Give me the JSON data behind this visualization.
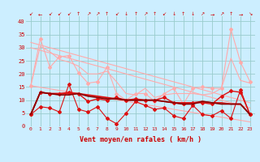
{
  "x": [
    0,
    1,
    2,
    3,
    4,
    5,
    6,
    7,
    8,
    9,
    10,
    11,
    12,
    13,
    14,
    15,
    16,
    17,
    18,
    19,
    20,
    21,
    22,
    23
  ],
  "background_color": "#cceeff",
  "grid_color": "#99cccc",
  "xlabel": "Vent moyen/en rafales ( km/h )",
  "ylim": [
    0,
    42
  ],
  "xlim": [
    -0.5,
    23.5
  ],
  "yticks": [
    0,
    5,
    10,
    15,
    20,
    25,
    30,
    35,
    40
  ],
  "line_diag1_color": "#ffaaaa",
  "line_diag1_data": [
    15.5,
    14.9,
    14.3,
    13.7,
    13.1,
    12.5,
    11.9,
    11.3,
    10.7,
    10.1,
    9.5,
    8.9,
    8.3,
    7.7,
    7.1,
    6.5,
    5.9,
    5.3,
    4.7,
    4.1,
    3.5,
    2.9,
    2.3,
    1.7
  ],
  "line_diag2_color": "#ffaaaa",
  "line_diag2_data": [
    30.0,
    29.0,
    28.0,
    27.0,
    26.0,
    25.0,
    24.0,
    23.0,
    22.0,
    21.0,
    20.0,
    19.0,
    18.0,
    17.0,
    16.0,
    15.0,
    14.0,
    13.0,
    12.0,
    11.0,
    10.0,
    9.0,
    8.0,
    7.0
  ],
  "line_diag3_color": "#ffaaaa",
  "line_diag3_data": [
    32.0,
    31.0,
    30.0,
    29.0,
    28.0,
    27.0,
    26.0,
    25.0,
    24.0,
    23.0,
    22.0,
    21.0,
    20.0,
    19.0,
    18.0,
    17.0,
    16.0,
    15.0,
    14.0,
    13.0,
    12.0,
    11.0,
    10.0,
    9.0
  ],
  "line_peak_color": "#ffaaaa",
  "line_peak_data": [
    15.5,
    33.5,
    22.5,
    26.5,
    27.0,
    20.5,
    16.5,
    17.0,
    22.5,
    12.5,
    10.0,
    12.5,
    12.5,
    9.5,
    12.5,
    14.5,
    8.5,
    14.5,
    15.0,
    14.5,
    14.5,
    37.0,
    24.5,
    17.0
  ],
  "line_avg2_color": "#ffaaaa",
  "line_avg2_data": [
    15.5,
    30.5,
    28.5,
    25.5,
    24.5,
    23.0,
    20.0,
    20.0,
    21.0,
    17.0,
    12.5,
    12.0,
    14.5,
    11.0,
    12.0,
    12.5,
    12.5,
    12.5,
    12.0,
    12.5,
    14.5,
    26.0,
    17.5,
    16.5
  ],
  "line_red1_color": "#dd1111",
  "line_red1_data": [
    4.5,
    7.5,
    7.0,
    5.5,
    16.0,
    6.5,
    5.5,
    7.5,
    3.0,
    1.0,
    5.0,
    9.5,
    8.0,
    6.5,
    7.0,
    4.0,
    3.0,
    8.0,
    4.5,
    4.0,
    6.0,
    3.0,
    14.0,
    4.5
  ],
  "line_red2_color": "#dd1111",
  "line_red2_data": [
    4.5,
    13.0,
    12.5,
    12.5,
    12.5,
    12.5,
    12.0,
    11.5,
    11.0,
    10.5,
    10.0,
    10.0,
    10.0,
    10.0,
    9.5,
    9.0,
    9.0,
    9.0,
    9.5,
    9.0,
    9.0,
    8.5,
    8.5,
    4.5
  ],
  "line_red3_color": "#dd1111",
  "line_red3_data": [
    4.5,
    13.0,
    12.5,
    12.5,
    13.0,
    12.5,
    9.5,
    10.5,
    10.0,
    11.0,
    10.0,
    10.5,
    10.0,
    10.0,
    11.0,
    9.0,
    8.5,
    9.0,
    9.0,
    8.5,
    11.5,
    13.5,
    13.0,
    4.5
  ],
  "line_dark_color": "#880000",
  "line_dark_data": [
    4.5,
    13.0,
    12.5,
    12.0,
    12.0,
    12.5,
    11.5,
    11.0,
    10.5,
    10.5,
    10.0,
    10.0,
    10.0,
    10.0,
    9.5,
    9.0,
    8.5,
    8.5,
    9.5,
    9.0,
    8.5,
    8.5,
    8.5,
    4.5
  ],
  "arrows": [
    "↙",
    "←",
    "↙",
    "↙",
    "↙",
    "↑",
    "↗",
    "↗",
    "↑",
    "↙",
    "↓",
    "↑",
    "↗",
    "↑",
    "↙",
    "↓",
    "↑",
    "↓",
    "↗",
    "→",
    "↗",
    "↑",
    "→",
    "↘"
  ]
}
